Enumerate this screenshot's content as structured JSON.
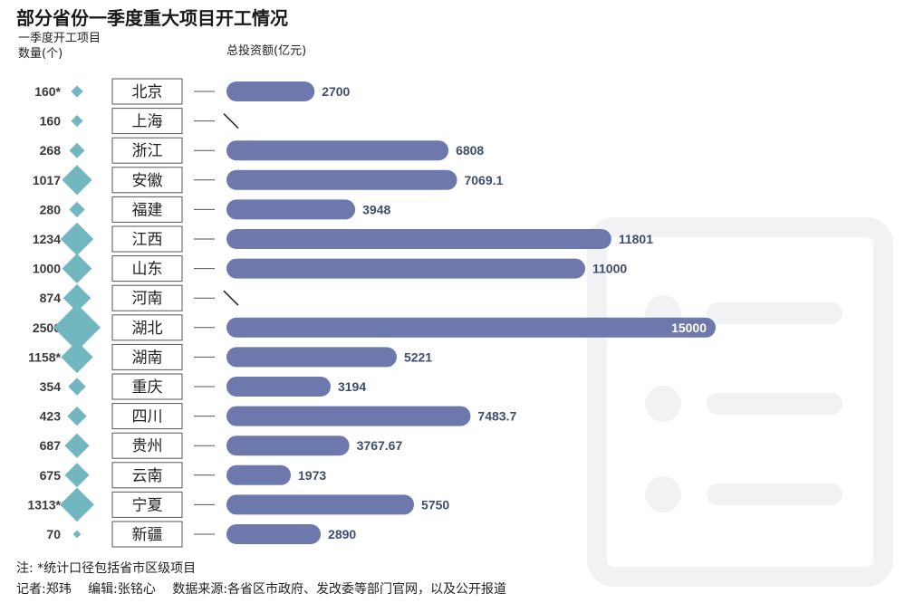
{
  "title": "部分省份一季度重大项目开工情况",
  "left_header": [
    "一季度开工项目",
    "数量(个)"
  ],
  "right_header": "总投资额(亿元)",
  "note": "注: *统计口径包括省市区级项目",
  "credits": {
    "reporter": "记者:郑玮",
    "editor": "编辑:张铭心",
    "source": "数据来源:各省区市政府、发改委等部门官网，以及公开报道"
  },
  "colors": {
    "bar": "#6d79ad",
    "diamond": "#72b6bf",
    "value_text": "#3f4d6e",
    "label_border": "#555555"
  },
  "chart_data": {
    "type": "bar",
    "orientation": "horizontal",
    "title": "部分省份一季度重大项目开工情况",
    "categories": [
      "北京",
      "上海",
      "浙江",
      "安徽",
      "福建",
      "江西",
      "山东",
      "河南",
      "湖北",
      "湖南",
      "重庆",
      "四川",
      "贵州",
      "云南",
      "宁夏",
      "新疆"
    ],
    "series": [
      {
        "name": "总投资额(亿元)",
        "values": [
          2700,
          null,
          6808,
          7069.1,
          3948,
          11801,
          11000,
          null,
          15000,
          5221,
          3194,
          7483.7,
          3767.67,
          1973,
          5750,
          2890
        ],
        "labels": [
          "2700",
          "\\",
          "6808",
          "7069.1",
          "3948",
          "11801",
          "11000",
          "\\",
          "15000",
          "5221",
          "3194",
          "7483.7",
          "3767.67",
          "1973",
          "5750",
          "2890"
        ]
      },
      {
        "name": "一季度开工项目数量(个)",
        "values": [
          160,
          160,
          268,
          1017,
          280,
          1234,
          1000,
          874,
          2506,
          1158,
          354,
          423,
          687,
          675,
          1313,
          70
        ],
        "labels": [
          "160*",
          "160",
          "268",
          "1017",
          "280",
          "1234",
          "1000",
          "874",
          "2506",
          "1158*",
          "354",
          "423",
          "687",
          "675",
          "1313*",
          "70"
        ]
      }
    ],
    "xlim": [
      0,
      15000
    ],
    "grid": false,
    "legend": "none"
  }
}
